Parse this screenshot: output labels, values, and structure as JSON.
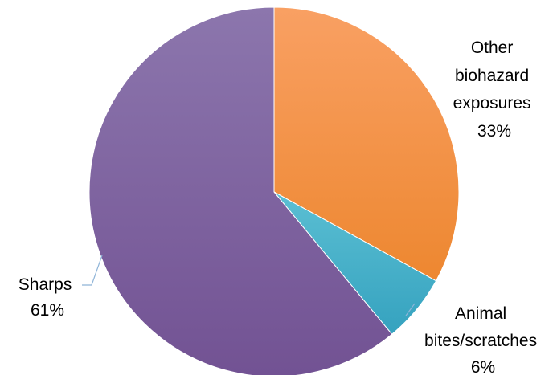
{
  "chart_data": {
    "type": "pie",
    "title": "",
    "slices": [
      {
        "label_lines": [
          "Other",
          "biohazard",
          "exposures"
        ],
        "value_text": "33%",
        "value": 33,
        "color_light": "#f9a063",
        "color_dark": "#ed8730"
      },
      {
        "label_lines": [
          "Animal",
          "bites/scratches"
        ],
        "value_text": "6%",
        "value": 6,
        "color_light": "#5bbfd3",
        "color_dark": "#35a2bf"
      },
      {
        "label_lines": [
          "Sharps"
        ],
        "value_text": "61%",
        "value": 61,
        "color_light": "#8c76ad",
        "color_dark": "#725293"
      }
    ],
    "start_angle_deg": 0,
    "direction": "clockwise",
    "legend": "none",
    "labels": "outside with leader lines"
  }
}
